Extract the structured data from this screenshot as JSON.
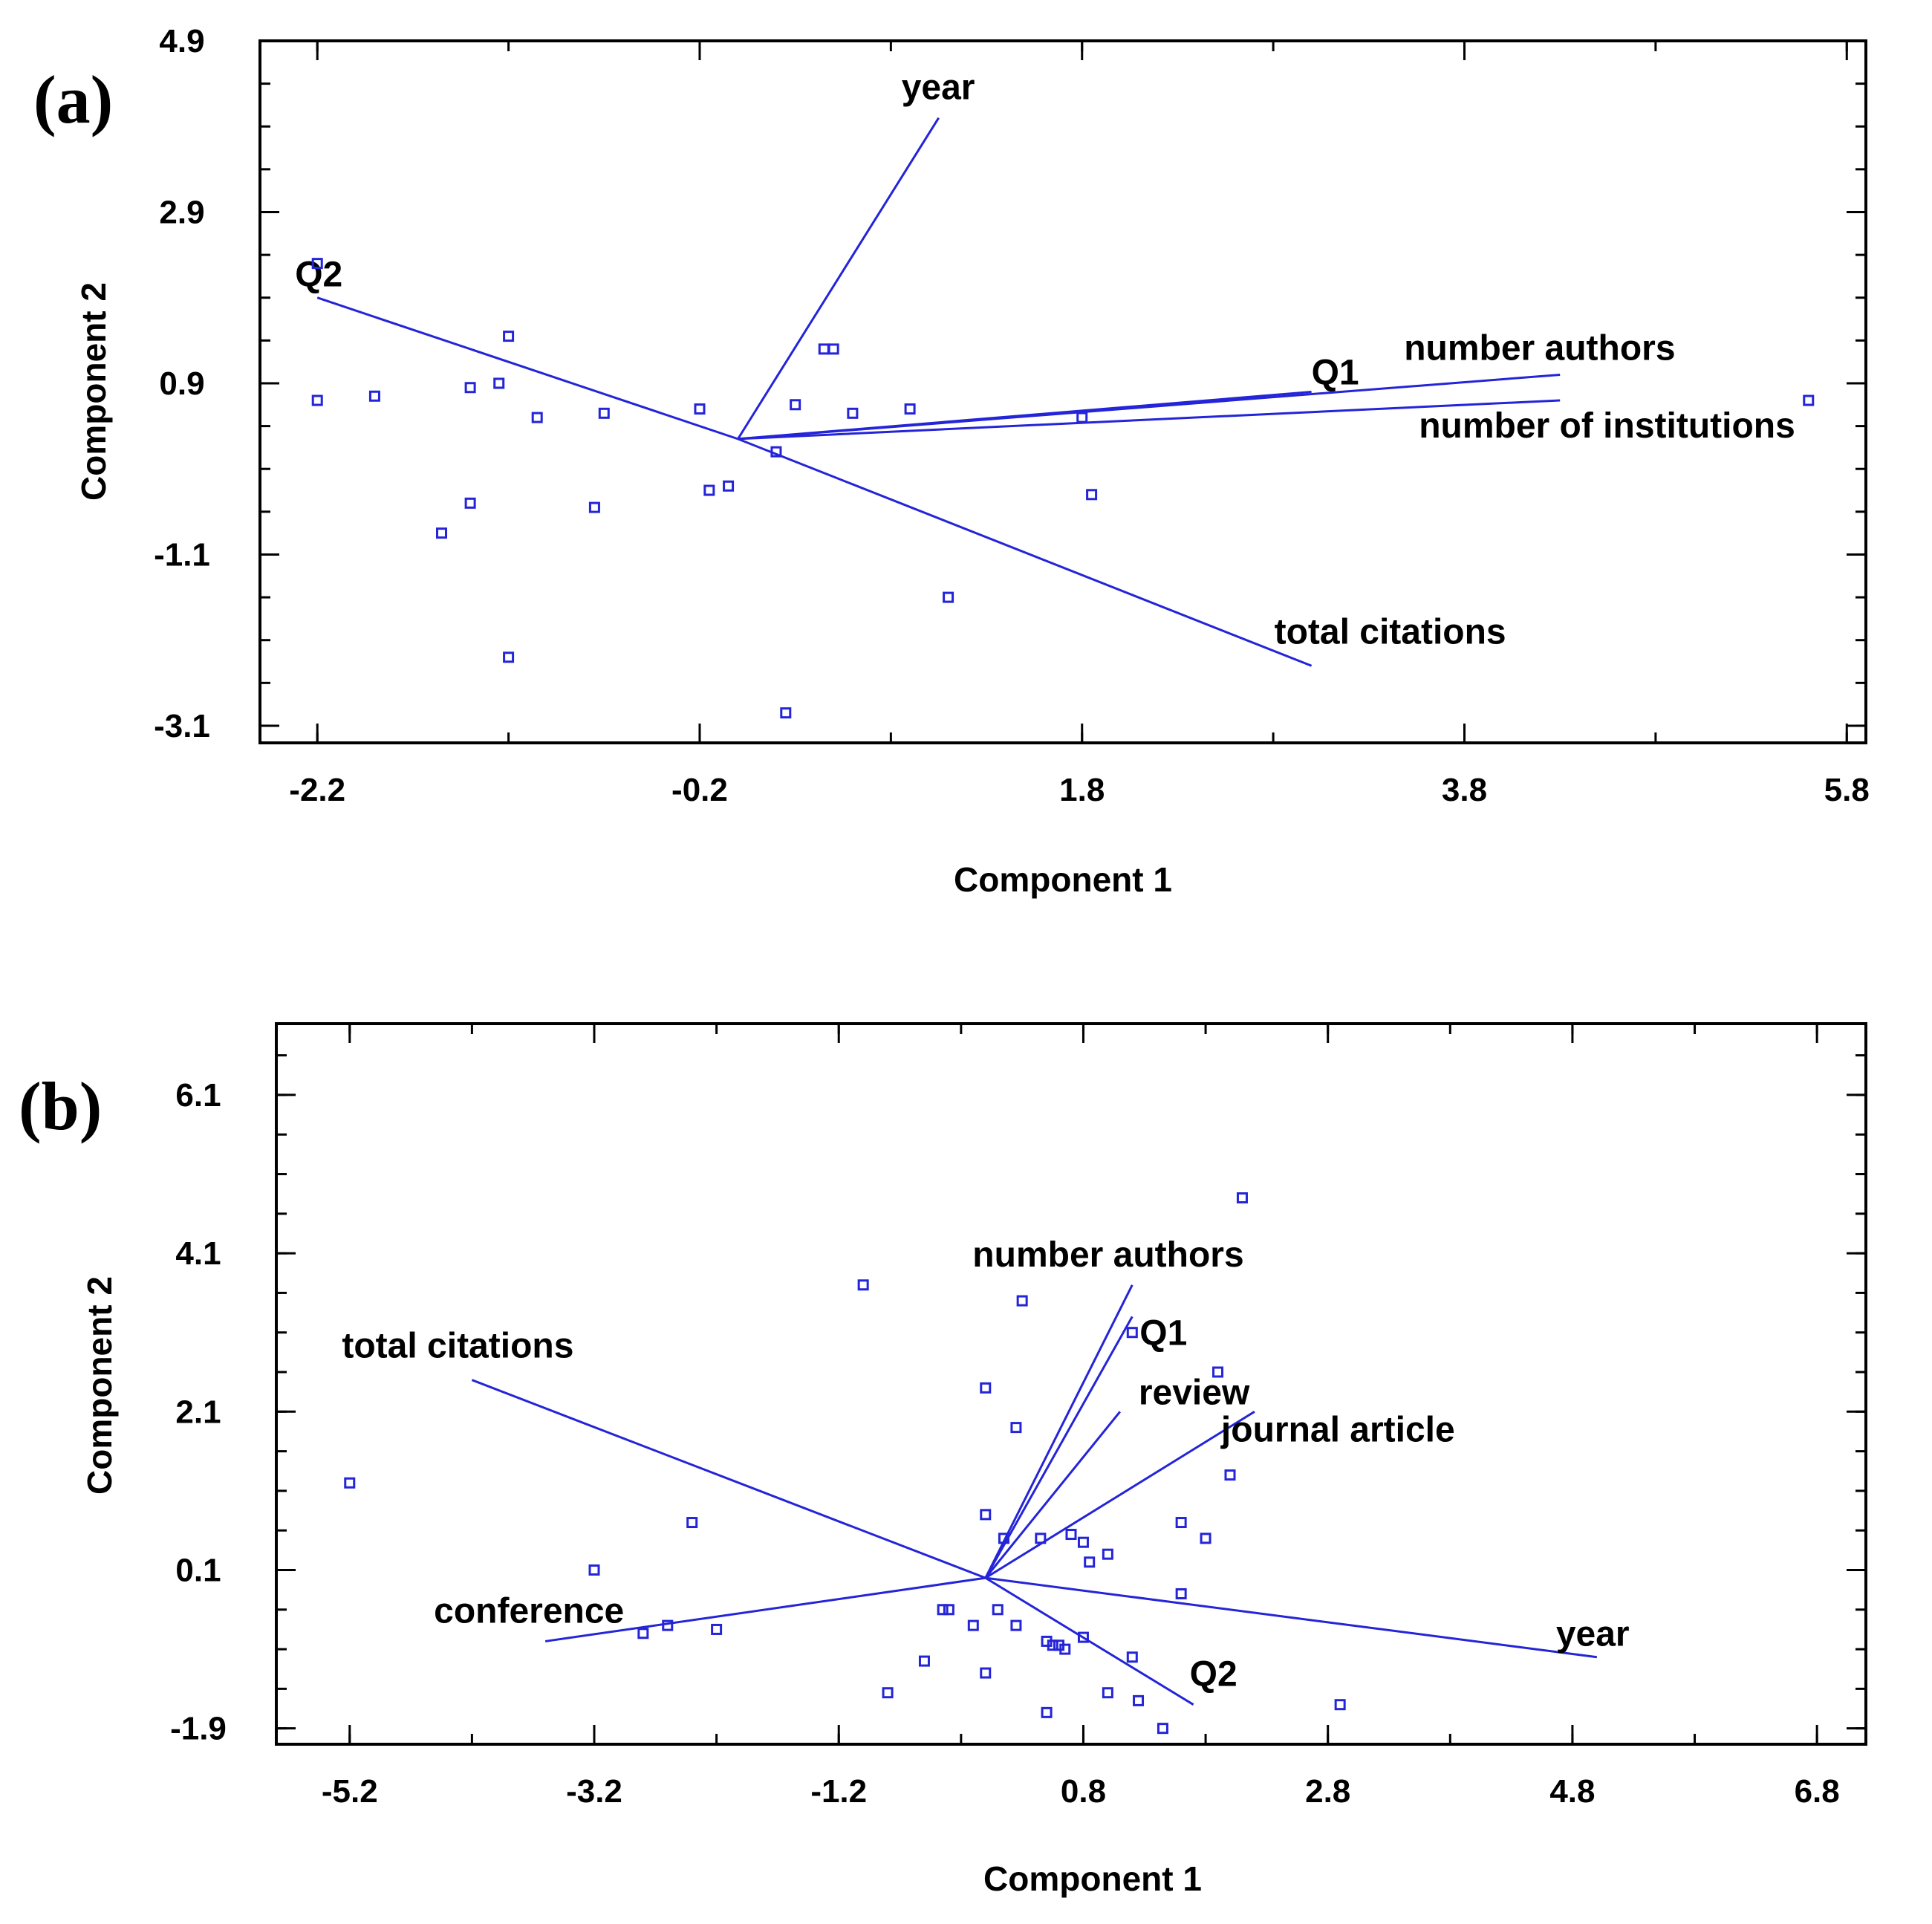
{
  "chart_data": [
    {
      "type": "scatter",
      "panel_label": "(a)",
      "xlabel": "Component 1",
      "ylabel": "Component 2",
      "xlim": [
        -2.5,
        5.9
      ],
      "ylim": [
        -3.3,
        4.9
      ],
      "xticks": [
        "-2.2",
        "-0.2",
        "1.8",
        "3.8",
        "5.8"
      ],
      "yticks": [
        "4.9",
        "2.9",
        "0.9",
        "-1.1",
        "-3.1"
      ],
      "color": "#2424d8",
      "vectors": [
        {
          "label": "year",
          "x": 1.05,
          "y": 4.0
        },
        {
          "label": "Q2",
          "x": -2.2,
          "y": 1.9
        },
        {
          "label": "number authors",
          "x": 4.3,
          "y": 1.0
        },
        {
          "label": "number of institutions",
          "x": 4.3,
          "y": 0.7
        },
        {
          "label": "total citations",
          "x": 3.0,
          "y": -2.4
        },
        {
          "label": "Q1",
          "x": 3.0,
          "y": 0.8
        }
      ],
      "vector_origin": {
        "x": 0.0,
        "y": 0.25
      },
      "points": [
        {
          "x": -2.2,
          "y": 2.3
        },
        {
          "x": -2.2,
          "y": 0.7
        },
        {
          "x": -1.9,
          "y": 0.75
        },
        {
          "x": -1.2,
          "y": 1.45
        },
        {
          "x": -1.25,
          "y": 0.9
        },
        {
          "x": -1.4,
          "y": 0.85
        },
        {
          "x": -1.05,
          "y": 0.5
        },
        {
          "x": -0.7,
          "y": 0.55
        },
        {
          "x": -0.2,
          "y": 0.6
        },
        {
          "x": 0.3,
          "y": 0.65
        },
        {
          "x": 0.45,
          "y": 1.3
        },
        {
          "x": 0.5,
          "y": 1.3
        },
        {
          "x": 0.6,
          "y": 0.55
        },
        {
          "x": 0.9,
          "y": 0.6
        },
        {
          "x": 1.8,
          "y": 0.5
        },
        {
          "x": 1.85,
          "y": -0.4
        },
        {
          "x": 0.2,
          "y": 0.1
        },
        {
          "x": -0.15,
          "y": -0.35
        },
        {
          "x": -0.05,
          "y": -0.3
        },
        {
          "x": -0.75,
          "y": -0.55
        },
        {
          "x": -1.4,
          "y": -0.5
        },
        {
          "x": -1.55,
          "y": -0.85
        },
        {
          "x": 1.1,
          "y": -1.6
        },
        {
          "x": -1.2,
          "y": -2.3
        },
        {
          "x": 0.25,
          "y": -2.95
        },
        {
          "x": 5.6,
          "y": 0.7
        }
      ]
    },
    {
      "type": "scatter",
      "panel_label": "(b)",
      "xlabel": "Component 1",
      "ylabel": "Component 2",
      "xlim": [
        -5.8,
        7.2
      ],
      "ylim": [
        -2.1,
        7.0
      ],
      "xticks": [
        "-5.2",
        "-3.2",
        "-1.2",
        "0.8",
        "2.8",
        "4.8",
        "6.8"
      ],
      "yticks": [
        "6.1",
        "4.1",
        "2.1",
        "0.1",
        "-1.9"
      ],
      "color": "#2424d8",
      "vectors": [
        {
          "label": "total citations",
          "x": -4.2,
          "y": 2.5
        },
        {
          "label": "conference",
          "x": -3.6,
          "y": -0.8
        },
        {
          "label": "number authors",
          "x": 1.2,
          "y": 3.7
        },
        {
          "label": "Q1",
          "x": 1.2,
          "y": 3.3
        },
        {
          "label": "review",
          "x": 1.1,
          "y": 2.1
        },
        {
          "label": "journal article",
          "x": 2.2,
          "y": 2.1
        },
        {
          "label": "year",
          "x": 5.0,
          "y": -1.0
        },
        {
          "label": "Q2",
          "x": 1.7,
          "y": -1.6
        }
      ],
      "vector_origin": {
        "x": 0.0,
        "y": 0.0
      },
      "points": [
        {
          "x": 2.1,
          "y": 4.8
        },
        {
          "x": -1.0,
          "y": 3.7
        },
        {
          "x": 0.3,
          "y": 3.5
        },
        {
          "x": 1.2,
          "y": 3.1
        },
        {
          "x": 1.9,
          "y": 2.6
        },
        {
          "x": 0.0,
          "y": 2.4
        },
        {
          "x": 0.25,
          "y": 1.9
        },
        {
          "x": 2.0,
          "y": 1.3
        },
        {
          "x": -5.2,
          "y": 1.2
        },
        {
          "x": -2.4,
          "y": 0.7
        },
        {
          "x": 0.0,
          "y": 0.8
        },
        {
          "x": 0.15,
          "y": 0.5
        },
        {
          "x": 0.45,
          "y": 0.5
        },
        {
          "x": 0.7,
          "y": 0.55
        },
        {
          "x": 0.8,
          "y": 0.45
        },
        {
          "x": 1.0,
          "y": 0.3
        },
        {
          "x": 0.85,
          "y": 0.2
        },
        {
          "x": 1.6,
          "y": 0.7
        },
        {
          "x": 1.8,
          "y": 0.5
        },
        {
          "x": -3.2,
          "y": 0.1
        },
        {
          "x": 1.6,
          "y": -0.2
        },
        {
          "x": -0.35,
          "y": -0.4
        },
        {
          "x": -0.3,
          "y": -0.4
        },
        {
          "x": 0.1,
          "y": -0.4
        },
        {
          "x": -0.1,
          "y": -0.6
        },
        {
          "x": 0.25,
          "y": -0.6
        },
        {
          "x": 0.5,
          "y": -0.8
        },
        {
          "x": 0.55,
          "y": -0.85
        },
        {
          "x": 0.6,
          "y": -0.85
        },
        {
          "x": 0.65,
          "y": -0.9
        },
        {
          "x": 0.8,
          "y": -0.75
        },
        {
          "x": 1.2,
          "y": -1.0
        },
        {
          "x": -2.8,
          "y": -0.7
        },
        {
          "x": -2.6,
          "y": -0.6
        },
        {
          "x": -2.2,
          "y": -0.65
        },
        {
          "x": -0.5,
          "y": -1.05
        },
        {
          "x": -0.8,
          "y": -1.45
        },
        {
          "x": 0.0,
          "y": -1.2
        },
        {
          "x": 1.0,
          "y": -1.45
        },
        {
          "x": 1.25,
          "y": -1.55
        },
        {
          "x": 0.5,
          "y": -1.7
        },
        {
          "x": 1.45,
          "y": -1.9
        },
        {
          "x": 2.9,
          "y": -1.6
        }
      ]
    }
  ]
}
